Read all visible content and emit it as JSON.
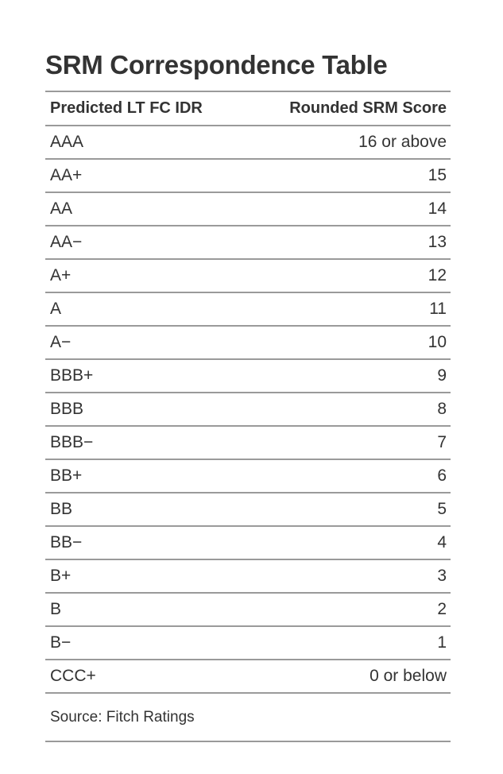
{
  "title": "SRM Correspondence Table",
  "header": {
    "col1": "Predicted LT FC IDR",
    "col2": "Rounded SRM Score"
  },
  "rows": [
    {
      "rating": "AAA",
      "score": "16 or above"
    },
    {
      "rating": "AA+",
      "score": "15"
    },
    {
      "rating": "AA",
      "score": "14"
    },
    {
      "rating": "AA−",
      "score": "13"
    },
    {
      "rating": "A+",
      "score": "12"
    },
    {
      "rating": "A",
      "score": "11"
    },
    {
      "rating": "A−",
      "score": "10"
    },
    {
      "rating": "BBB+",
      "score": "9"
    },
    {
      "rating": "BBB",
      "score": "8"
    },
    {
      "rating": "BBB−",
      "score": "7"
    },
    {
      "rating": "BB+",
      "score": "6"
    },
    {
      "rating": "BB",
      "score": "5"
    },
    {
      "rating": "BB−",
      "score": "4"
    },
    {
      "rating": "B+",
      "score": "3"
    },
    {
      "rating": "B",
      "score": "2"
    },
    {
      "rating": "B−",
      "score": "1"
    },
    {
      "rating": "CCC+",
      "score": "0 or below"
    }
  ],
  "source": "Source: Fitch Ratings"
}
